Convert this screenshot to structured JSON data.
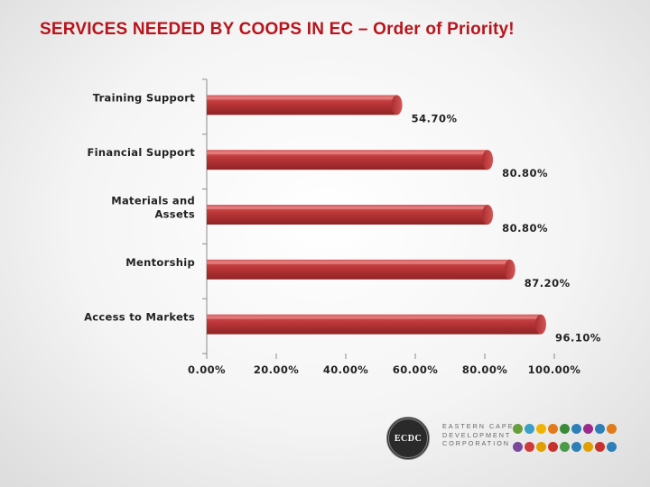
{
  "title": "SERVICES NEEDED BY COOPS IN EC – Order of Priority!",
  "chart_data": {
    "type": "bar",
    "orientation": "horizontal",
    "categories": [
      "Training Support",
      "Financial Support",
      "Materials and Assets",
      "Mentorship",
      "Access to Markets"
    ],
    "category_lines": [
      [
        "Training Support"
      ],
      [
        "Financial Support"
      ],
      [
        "Materials and",
        "Assets"
      ],
      [
        "Mentorship"
      ],
      [
        "Access to Markets"
      ]
    ],
    "values": [
      54.7,
      80.8,
      80.8,
      87.2,
      96.1
    ],
    "value_labels": [
      "54.70%",
      "80.80%",
      "80.80%",
      "87.20%",
      "96.10%"
    ],
    "xlim": [
      0,
      100
    ],
    "ticks": [
      0,
      20,
      40,
      60,
      80,
      100
    ],
    "tick_labels": [
      "0.00%",
      "20.00%",
      "40.00%",
      "60.00%",
      "80.00%",
      "100.00%"
    ],
    "bar_color": "#c0393b",
    "grid": false,
    "legend": "none"
  },
  "logo": {
    "seal_text": "ECDC",
    "name_lines": [
      "EASTERN CAPE",
      "DEVELOPMENT",
      "CORPORATION"
    ],
    "dot_colors_top": [
      "#6a9e3a",
      "#3aa0c8",
      "#f0b400",
      "#e07a1a",
      "#3a8a3a",
      "#2c7fb8",
      "#9b2a8a",
      "#2c7fb8",
      "#e07a1a"
    ],
    "dot_colors_bottom": [
      "#7a4a9a",
      "#d13a3a",
      "#e0a000",
      "#c8322a",
      "#4a9a4a",
      "#2c7fb8",
      "#e0a000",
      "#c8322a",
      "#2c7fb8"
    ]
  },
  "colors": {
    "title": "#b8141b",
    "bar": "#c0393b"
  }
}
